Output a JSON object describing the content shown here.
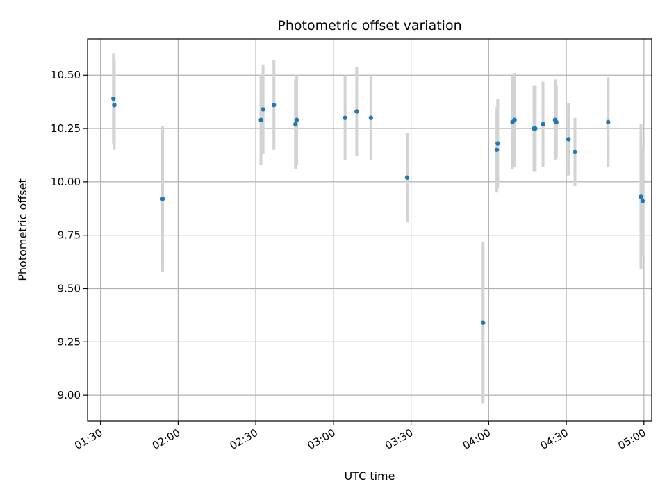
{
  "chart_data": {
    "type": "scatter",
    "title": "Photometric offset variation",
    "xlabel": "UTC time",
    "ylabel": "Photometric offset",
    "x_axis_type": "time",
    "xlim": [
      "01:25",
      "05:03"
    ],
    "ylim": [
      8.88,
      10.67
    ],
    "x_ticks": [
      "01:30",
      "02:00",
      "02:30",
      "03:00",
      "03:30",
      "04:00",
      "04:30",
      "05:00"
    ],
    "y_ticks": [
      9.0,
      9.25,
      9.5,
      9.75,
      10.0,
      10.25,
      10.5
    ],
    "y_tick_labels": [
      "9.00",
      "9.25",
      "9.50",
      "9.75",
      "10.00",
      "10.25",
      "10.50"
    ],
    "grid": true,
    "legend": "none",
    "colors": {
      "point": "#1f77b4",
      "errorbar": "#d3d3d3",
      "grid": "#b0b0b0"
    },
    "points": [
      {
        "x": "01:35:00",
        "y": 10.39,
        "err": 0.21
      },
      {
        "x": "01:35:20",
        "y": 10.36,
        "err": 0.21
      },
      {
        "x": "01:54:00",
        "y": 9.92,
        "err": 0.34
      },
      {
        "x": "02:32:00",
        "y": 10.29,
        "err": 0.21
      },
      {
        "x": "02:32:50",
        "y": 10.34,
        "err": 0.21
      },
      {
        "x": "02:37:00",
        "y": 10.36,
        "err": 0.21
      },
      {
        "x": "02:45:20",
        "y": 10.27,
        "err": 0.21
      },
      {
        "x": "02:45:50",
        "y": 10.29,
        "err": 0.21
      },
      {
        "x": "03:04:30",
        "y": 10.3,
        "err": 0.2
      },
      {
        "x": "03:09:00",
        "y": 10.33,
        "err": 0.21
      },
      {
        "x": "03:14:30",
        "y": 10.3,
        "err": 0.2
      },
      {
        "x": "03:28:30",
        "y": 10.02,
        "err": 0.21
      },
      {
        "x": "03:57:50",
        "y": 9.34,
        "err": 0.38
      },
      {
        "x": "04:03:10",
        "y": 10.15,
        "err": 0.2
      },
      {
        "x": "04:03:30",
        "y": 10.18,
        "err": 0.21
      },
      {
        "x": "04:09:10",
        "y": 10.28,
        "err": 0.22
      },
      {
        "x": "04:10:00",
        "y": 10.29,
        "err": 0.22
      },
      {
        "x": "04:17:30",
        "y": 10.25,
        "err": 0.2
      },
      {
        "x": "04:18:00",
        "y": 10.25,
        "err": 0.2
      },
      {
        "x": "04:21:00",
        "y": 10.27,
        "err": 0.2
      },
      {
        "x": "04:25:40",
        "y": 10.29,
        "err": 0.19
      },
      {
        "x": "04:26:10",
        "y": 10.28,
        "err": 0.17
      },
      {
        "x": "04:30:50",
        "y": 10.2,
        "err": 0.17
      },
      {
        "x": "04:33:20",
        "y": 10.14,
        "err": 0.16
      },
      {
        "x": "04:46:10",
        "y": 10.28,
        "err": 0.21
      },
      {
        "x": "04:58:50",
        "y": 9.93,
        "err": 0.34
      },
      {
        "x": "04:59:30",
        "y": 9.91,
        "err": 0.26
      }
    ]
  }
}
